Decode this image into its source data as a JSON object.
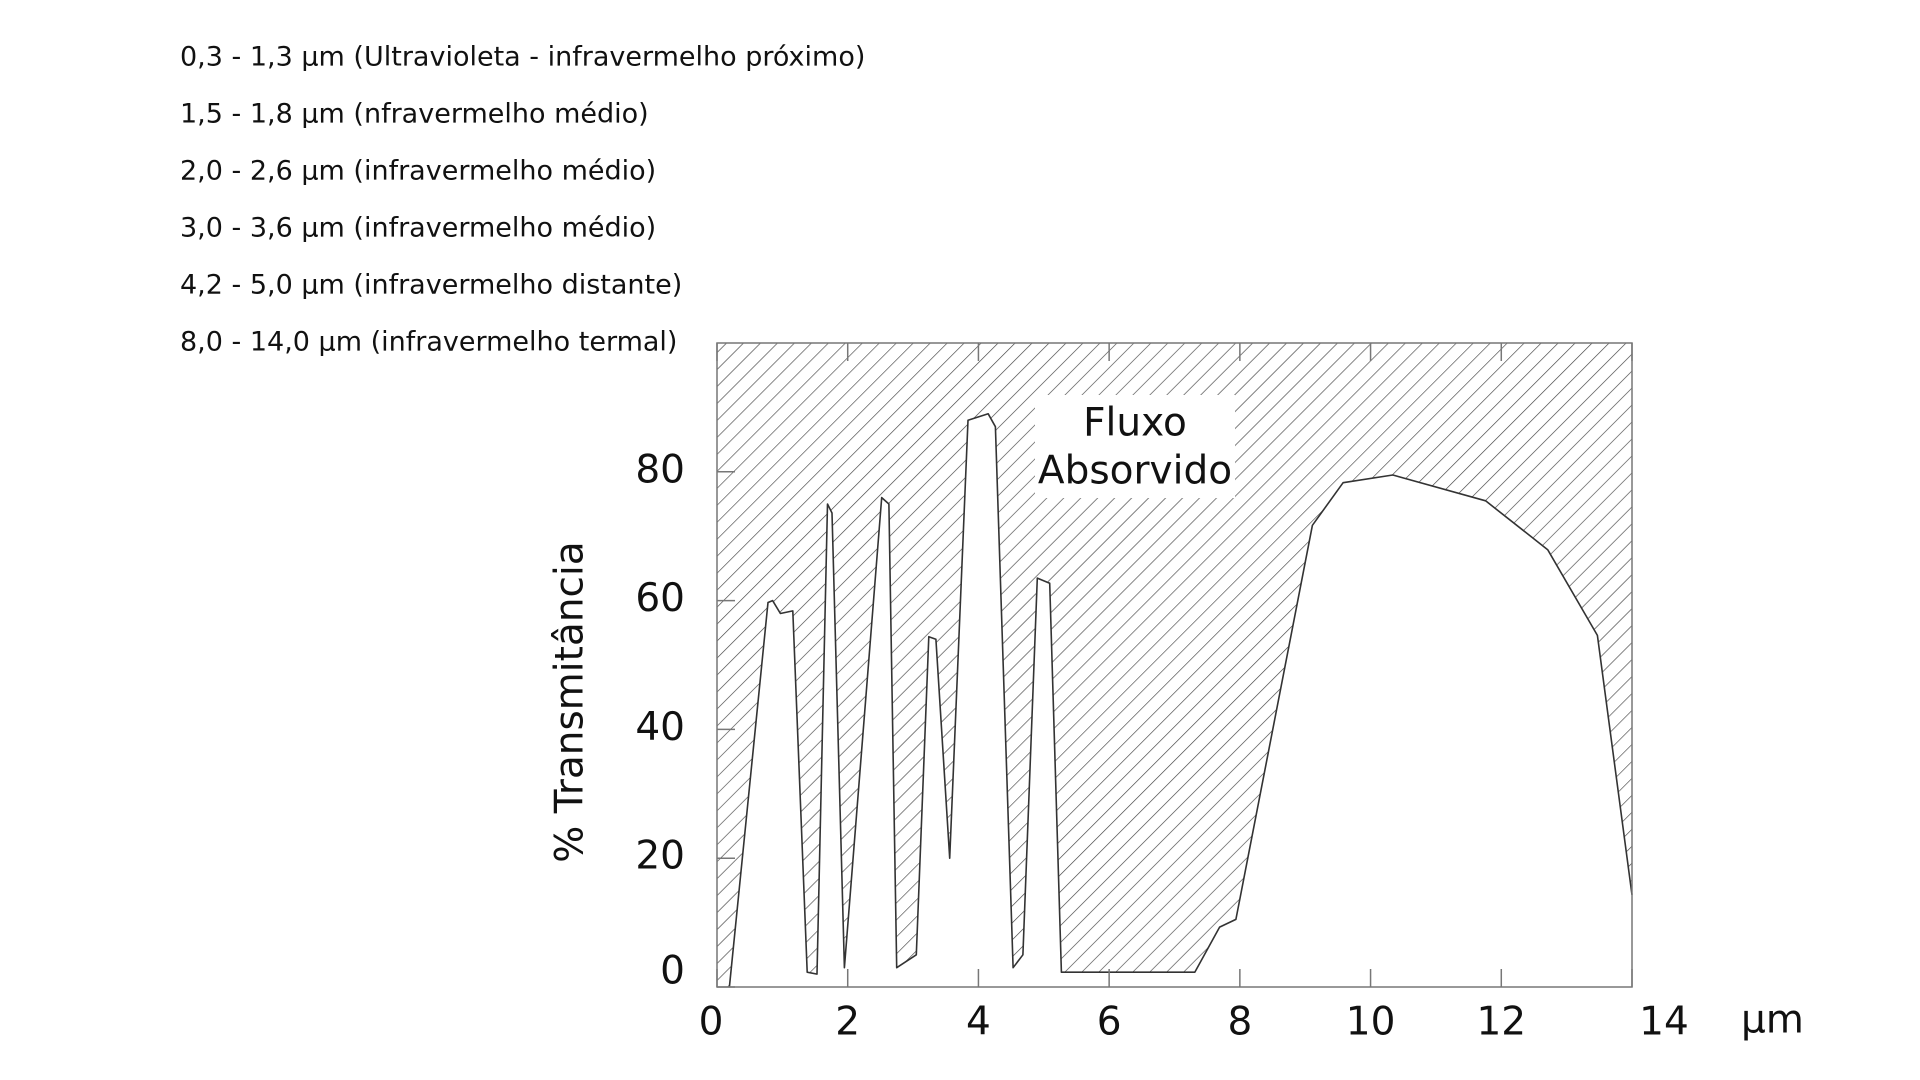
{
  "chart_data": {
    "type": "area",
    "legend_lines": [
      "0,3 - 1,3 μm (Ultravioleta - infravermelho próximo)",
      "1,5 - 1,8 μm (nfravermelho médio)",
      "2,0 - 2,6 μm (infravermelho médio)",
      "3,0 - 3,6 μm (infravermelho médio)",
      "4,2 - 5,0 μm (infravermelho distante)",
      "8,0 - 14,0 μm (infravermelho termal)"
    ],
    "ylabel": "% Transmitância",
    "xunit": "μm",
    "annotation_lines": [
      "Fluxo",
      "Absorvido"
    ],
    "x": [
      0.19,
      0.78,
      0.85,
      0.97,
      1.16,
      1.38,
      1.53,
      1.69,
      1.76,
      1.95,
      2.52,
      2.63,
      2.75,
      3.05,
      3.24,
      3.35,
      3.56,
      3.84,
      4.15,
      4.26,
      4.53,
      4.68,
      4.9,
      5.09,
      5.27,
      7.31,
      7.69,
      7.94,
      9.11,
      9.58,
      10.34,
      11.76,
      12.71,
      13.47,
      14
    ],
    "values": [
      0,
      59.7,
      60,
      58,
      58.4,
      2.3,
      2,
      75,
      73.6,
      3,
      76,
      75,
      3,
      5,
      54.4,
      54,
      20,
      88,
      89,
      87,
      3,
      5,
      63.5,
      62.7,
      2.3,
      2.3,
      9.3,
      10.5,
      71.7,
      78.3,
      79.5,
      75.5,
      67.9,
      54.6,
      14.3
    ],
    "color": "#333333",
    "absorbed_hatch": true,
    "xlim": [
      0,
      14
    ],
    "ylim": [
      0,
      100
    ],
    "xticks": [
      0,
      2,
      4,
      6,
      8,
      10,
      12,
      14
    ],
    "yticks": [
      0,
      20,
      40,
      60,
      80
    ]
  }
}
